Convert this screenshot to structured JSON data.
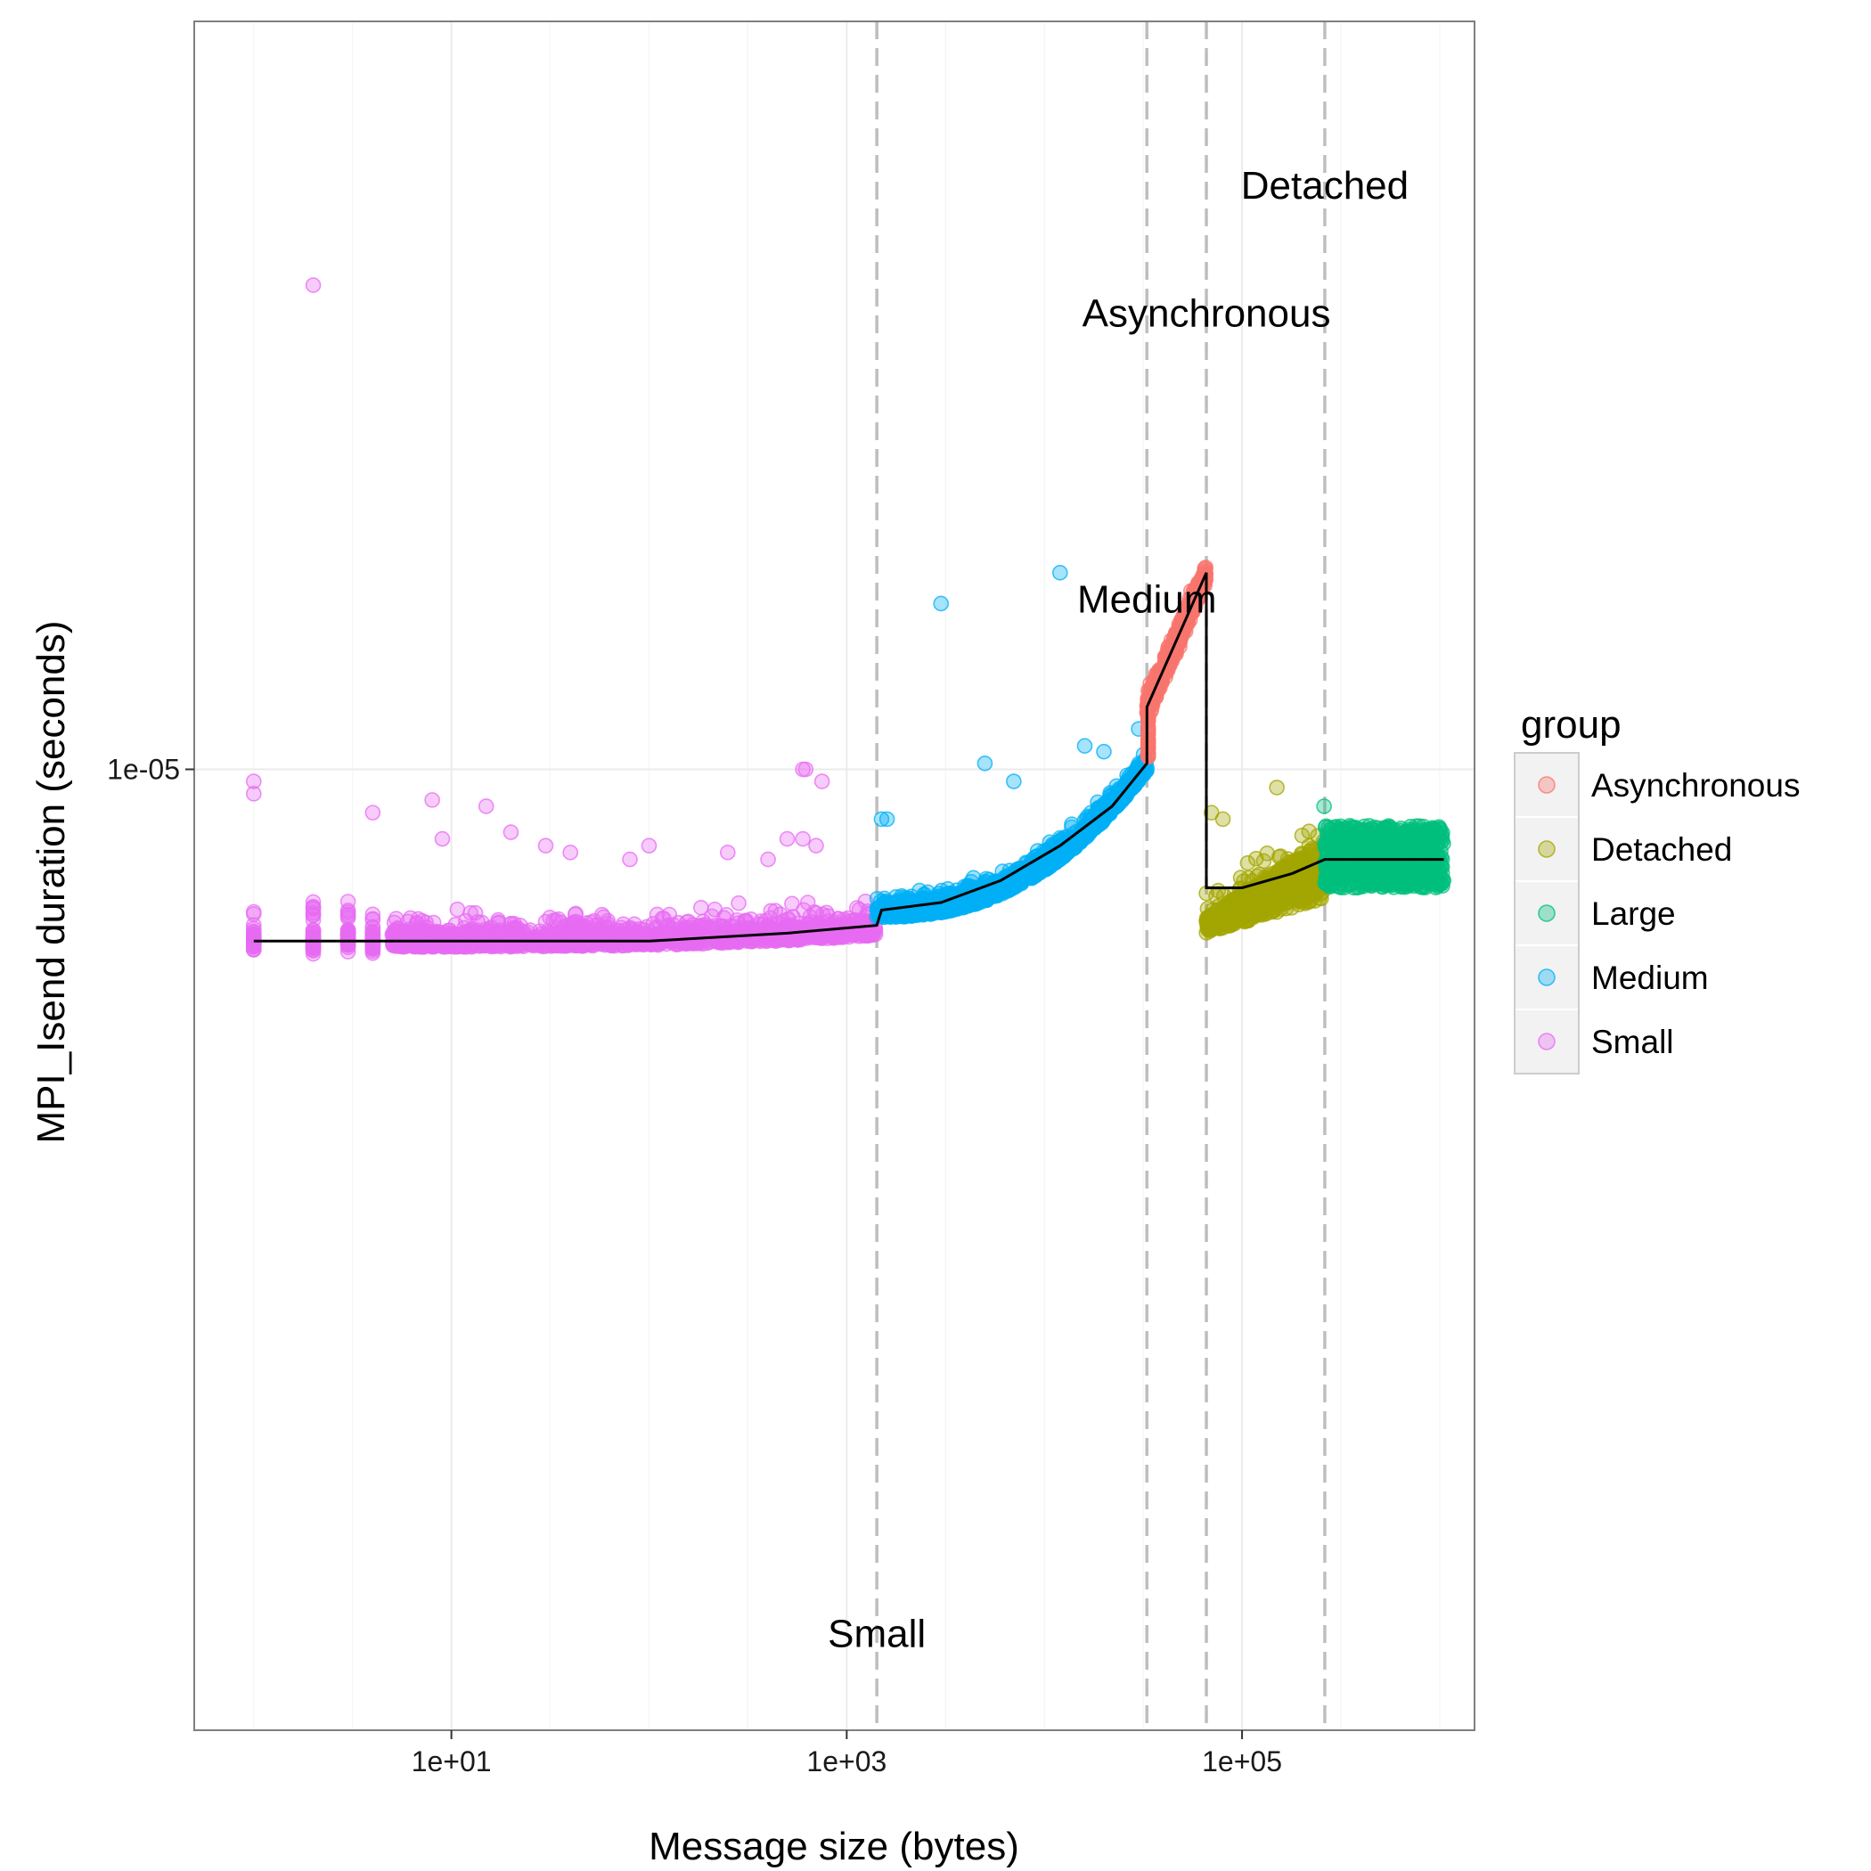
{
  "chart_data": {
    "type": "scatter",
    "title": "",
    "xlabel": "Message size (bytes)",
    "ylabel": "MPI_Isend duration (seconds)",
    "x_scale": "log10",
    "y_scale": "log10",
    "xlim": [
      0.5,
      1500000
    ],
    "ylim": [
      2e-06,
      3.5e-05
    ],
    "x_ticks": [
      {
        "value": 10,
        "label": "1e+01"
      },
      {
        "value": 1000,
        "label": "1e+03"
      },
      {
        "value": 100000,
        "label": "1e+05"
      }
    ],
    "y_ticks": [
      {
        "value": 1e-05,
        "label": "1e-05"
      }
    ],
    "grid": true,
    "legend": {
      "title": "group",
      "placement": "right"
    },
    "colors": {
      "Asynchronous": "#F8766D",
      "Detached": "#A3A500",
      "Large": "#00BF7D",
      "Medium": "#00B0F6",
      "Small": "#E76BF3",
      "fit_line": "#000000",
      "breakpoint_line": "#BEBEBE",
      "panel_border": "#7F7F7F",
      "grid_major": "#EBEBEB",
      "grid_minor": "#F5F5F5"
    },
    "breakpoints": [
      1420,
      33000,
      66000,
      262144
    ],
    "annotations": [
      {
        "text": "Small",
        "x": 1420,
        "y": 2.3e-06
      },
      {
        "text": "Medium",
        "x": 33000,
        "y": 1.3e-05
      },
      {
        "text": "Asynchronous",
        "x": 66000,
        "y": 2.1e-05
      },
      {
        "text": "Detached",
        "x": 262144,
        "y": 2.6e-05
      }
    ],
    "series": [
      {
        "name": "Small",
        "x_range": [
          1,
          1420
        ],
        "base_y": [
          7.4e-06,
          7.6e-06,
          7.9e-06,
          8.4e-06
        ],
        "outliers": [
          [
            2,
            2.25e-05
          ],
          [
            1,
            9.8e-06
          ],
          [
            1,
            9.6e-06
          ],
          [
            4,
            9.3e-06
          ],
          [
            8,
            9.5e-06
          ],
          [
            15,
            9.4e-06
          ],
          [
            600,
            1e-05
          ],
          [
            620,
            1e-05
          ],
          [
            750,
            9.8e-06
          ],
          [
            20,
            9e-06
          ],
          [
            9,
            8.9e-06
          ],
          [
            30,
            8.8e-06
          ],
          [
            100,
            8.8e-06
          ],
          [
            500,
            8.9e-06
          ],
          [
            600,
            8.9e-06
          ],
          [
            700,
            8.8e-06
          ],
          [
            40,
            8.7e-06
          ],
          [
            250,
            8.7e-06
          ],
          [
            80,
            8.6e-06
          ],
          [
            400,
            8.6e-06
          ]
        ]
      },
      {
        "name": "Medium",
        "x_range": [
          1420,
          33000
        ],
        "start_y": 8.1e-06,
        "end_y": 1.02e-05,
        "outliers": [
          [
            12000,
            1.39e-05
          ],
          [
            3000,
            1.32e-05
          ],
          [
            20000,
            1.03e-05
          ],
          [
            7000,
            9.8e-06
          ],
          [
            5000,
            1.01e-05
          ],
          [
            1500,
            9.2e-06
          ],
          [
            1600,
            9.2e-06
          ],
          [
            30000,
            1.07e-05
          ],
          [
            16000,
            1.04e-05
          ]
        ]
      },
      {
        "name": "Asynchronous",
        "x_range": [
          33000,
          66000
        ],
        "start_y": 1.09e-05,
        "end_y": 1.39e-05
      },
      {
        "name": "Detached",
        "x_range": [
          66000,
          262144
        ],
        "start_y": 8.2e-06,
        "end_y": 8.5e-06,
        "outliers": [
          [
            150000,
            9.7e-06
          ],
          [
            70000,
            9.3e-06
          ],
          [
            80000,
            9.2e-06
          ]
        ]
      },
      {
        "name": "Large",
        "x_range": [
          262144,
          1048576
        ],
        "start_y": 8.4e-06,
        "end_y": 8.7e-06,
        "outliers": [
          [
            260000,
            9.4e-06
          ]
        ]
      }
    ],
    "fit_line": [
      [
        1,
        7.5e-06
      ],
      [
        10,
        7.5e-06
      ],
      [
        100,
        7.5e-06
      ],
      [
        500,
        7.6e-06
      ],
      [
        1420,
        7.7e-06
      ],
      [
        1500,
        7.9e-06
      ],
      [
        3000,
        8e-06
      ],
      [
        6000,
        8.3e-06
      ],
      [
        12000,
        8.8e-06
      ],
      [
        22000,
        9.4e-06
      ],
      [
        33000,
        1.01e-05
      ],
      [
        33000,
        1.11e-05
      ],
      [
        66000,
        1.39e-05
      ],
      [
        66000,
        8.2e-06
      ],
      [
        100000,
        8.2e-06
      ],
      [
        180000,
        8.4e-06
      ],
      [
        262144,
        8.6e-06
      ],
      [
        600000,
        8.6e-06
      ],
      [
        1048576,
        8.6e-06
      ]
    ]
  }
}
